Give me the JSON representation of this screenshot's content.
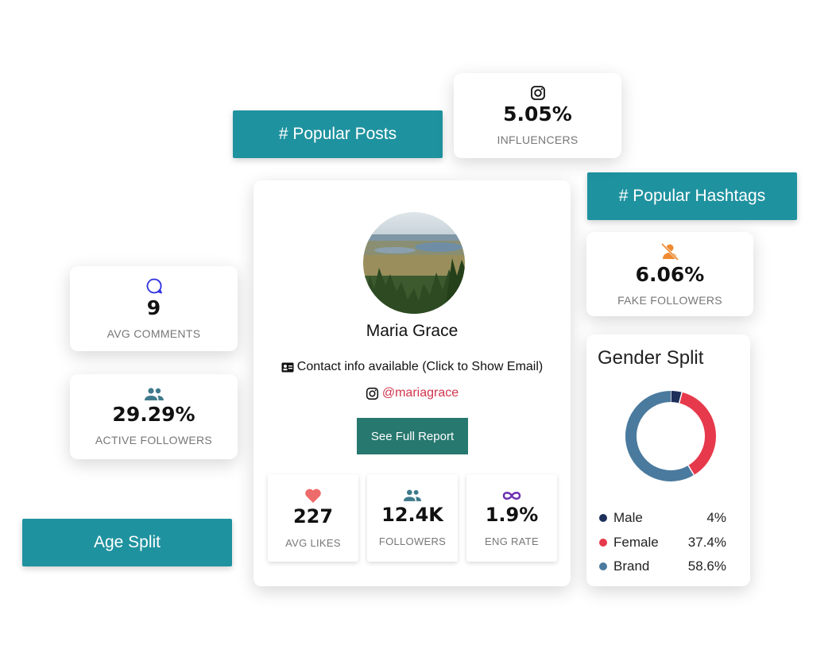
{
  "tags": {
    "popular_posts": "# Popular Posts",
    "popular_hashtags": "# Popular Hashtags",
    "age_split": "Age Split"
  },
  "stats": {
    "influencers": {
      "value": "5.05%",
      "label": "INFLUENCERS",
      "icon": "instagram-icon"
    },
    "fake_followers": {
      "value": "6.06%",
      "label": "FAKE FOLLOWERS",
      "icon": "user-block-icon"
    },
    "avg_comments": {
      "value": "9",
      "label": "AVG COMMENTS",
      "icon": "comment-icon"
    },
    "active_followers": {
      "value": "29.29%",
      "label": "ACTIVE FOLLOWERS",
      "icon": "people-icon"
    }
  },
  "profile": {
    "name": "Maria Grace",
    "contact_text": "Contact info available (Click to Show Email)",
    "handle": "@mariagrace",
    "report_button": "See Full Report",
    "metrics": [
      {
        "value": "227",
        "label": "AVG LIKES",
        "icon": "heart-icon"
      },
      {
        "value": "12.4K",
        "label": "FOLLOWERS",
        "icon": "people-icon"
      },
      {
        "value": "1.9%",
        "label": "ENG RATE",
        "icon": "infinity-icon"
      }
    ]
  },
  "gender_split": {
    "title": "Gender Split",
    "chart_data": {
      "type": "pie",
      "title": "Gender Split",
      "categories": [
        "Male",
        "Female",
        "Brand"
      ],
      "values": [
        4,
        37.4,
        58.6
      ],
      "colors": [
        "#1e2f5b",
        "#e63a4c",
        "#4a7a9e"
      ],
      "donut": true
    },
    "legend": [
      {
        "name": "Male",
        "pct": "4%"
      },
      {
        "name": "Female",
        "pct": "37.4%"
      },
      {
        "name": "Brand",
        "pct": "58.6%"
      }
    ]
  },
  "colors": {
    "teal_tag": "#1f929f",
    "button": "#27786f",
    "handle": "#d0354c",
    "heart": "#ee6b6b",
    "people": "#3f7a8c",
    "infinity": "#6b2db2",
    "comment": "#2e2ee0",
    "fake": "#f08a30"
  }
}
